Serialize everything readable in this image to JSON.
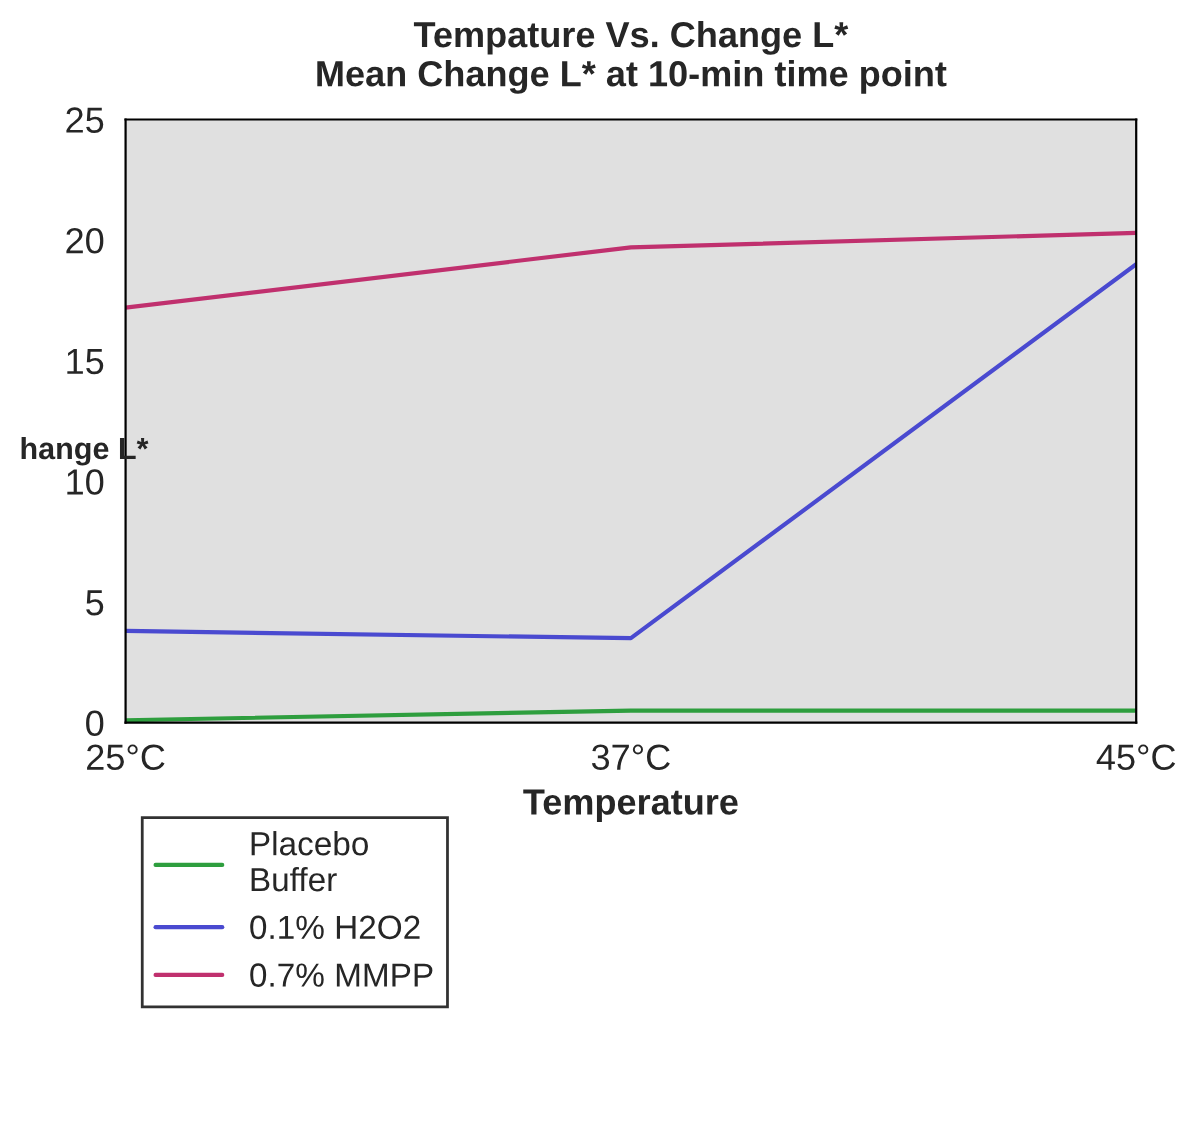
{
  "chart_data": {
    "type": "line",
    "title": "Tempature Vs. Change L*\nMean Change L* at 10-min time point",
    "xlabel": "Temperature",
    "ylabel": "hange L*",
    "categories": [
      "25°C",
      "37°C",
      "45°C"
    ],
    "series": [
      {
        "name": "Placebo\nBuffer",
        "color": "#2e9e3e",
        "values": [
          0.1,
          0.5,
          0.5
        ]
      },
      {
        "name": "0.1% H2O2",
        "color": "#4a4ad0",
        "values": [
          3.8,
          3.5,
          19.0
        ]
      },
      {
        "name": "0.7% MMPP",
        "color": "#c0306e",
        "values": [
          17.2,
          19.7,
          20.3
        ]
      }
    ],
    "ylim": [
      0,
      25
    ],
    "yticks": [
      0,
      5,
      10,
      15,
      20,
      25
    ],
    "grid": false,
    "legend": "bottom left",
    "marker": "none",
    "line_style": "solid"
  }
}
